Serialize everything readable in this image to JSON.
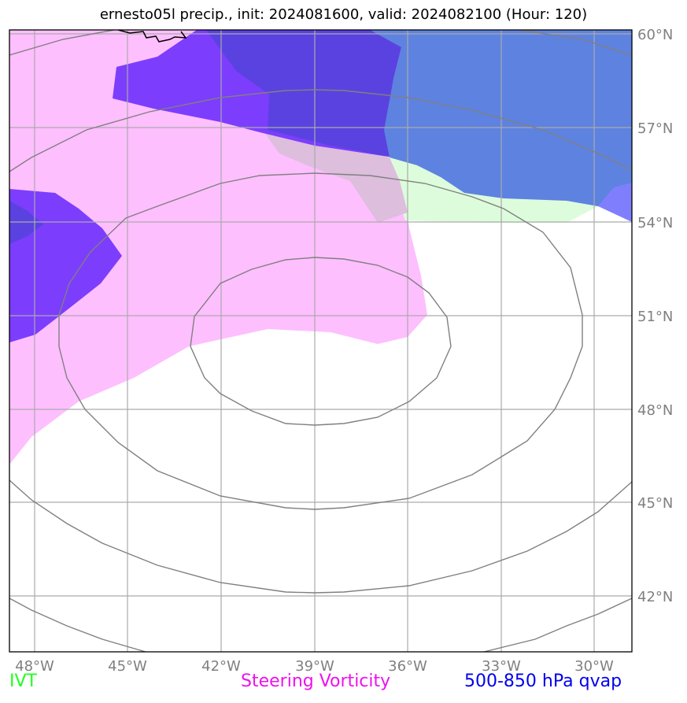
{
  "title": "ernesto05l precip., init: 2024081600, valid: 2024082100 (Hour: 120)",
  "map": {
    "lat_ticks": [
      "60°N",
      "57°N",
      "54°N",
      "51°N",
      "48°N",
      "45°N",
      "42°N"
    ],
    "lon_ticks": [
      "48°W",
      "45°W",
      "42°W",
      "39°W",
      "36°W",
      "33°W",
      "30°W"
    ],
    "colors": {
      "ivt": "#ddfcdc",
      "steering_vorticity": "#febffe",
      "qvap_dark": "#5a42e0",
      "qvap_violet": "#7d3dfd",
      "qvap_blue": "#5e82e0",
      "qvap_light": "#7f7ffe",
      "overlap_mauve": "#ddbedd",
      "gridlines": "#aaaaaa",
      "contours": "#808080",
      "coastline": "#000000"
    }
  },
  "legend": {
    "ivt": {
      "label": "IVT",
      "color": "#22ff22"
    },
    "vorticity": {
      "label": "Steering Vorticity",
      "color": "#ee11ee"
    },
    "qvap": {
      "label": "500-850 hPa qvap",
      "color": "#0000ee"
    }
  }
}
